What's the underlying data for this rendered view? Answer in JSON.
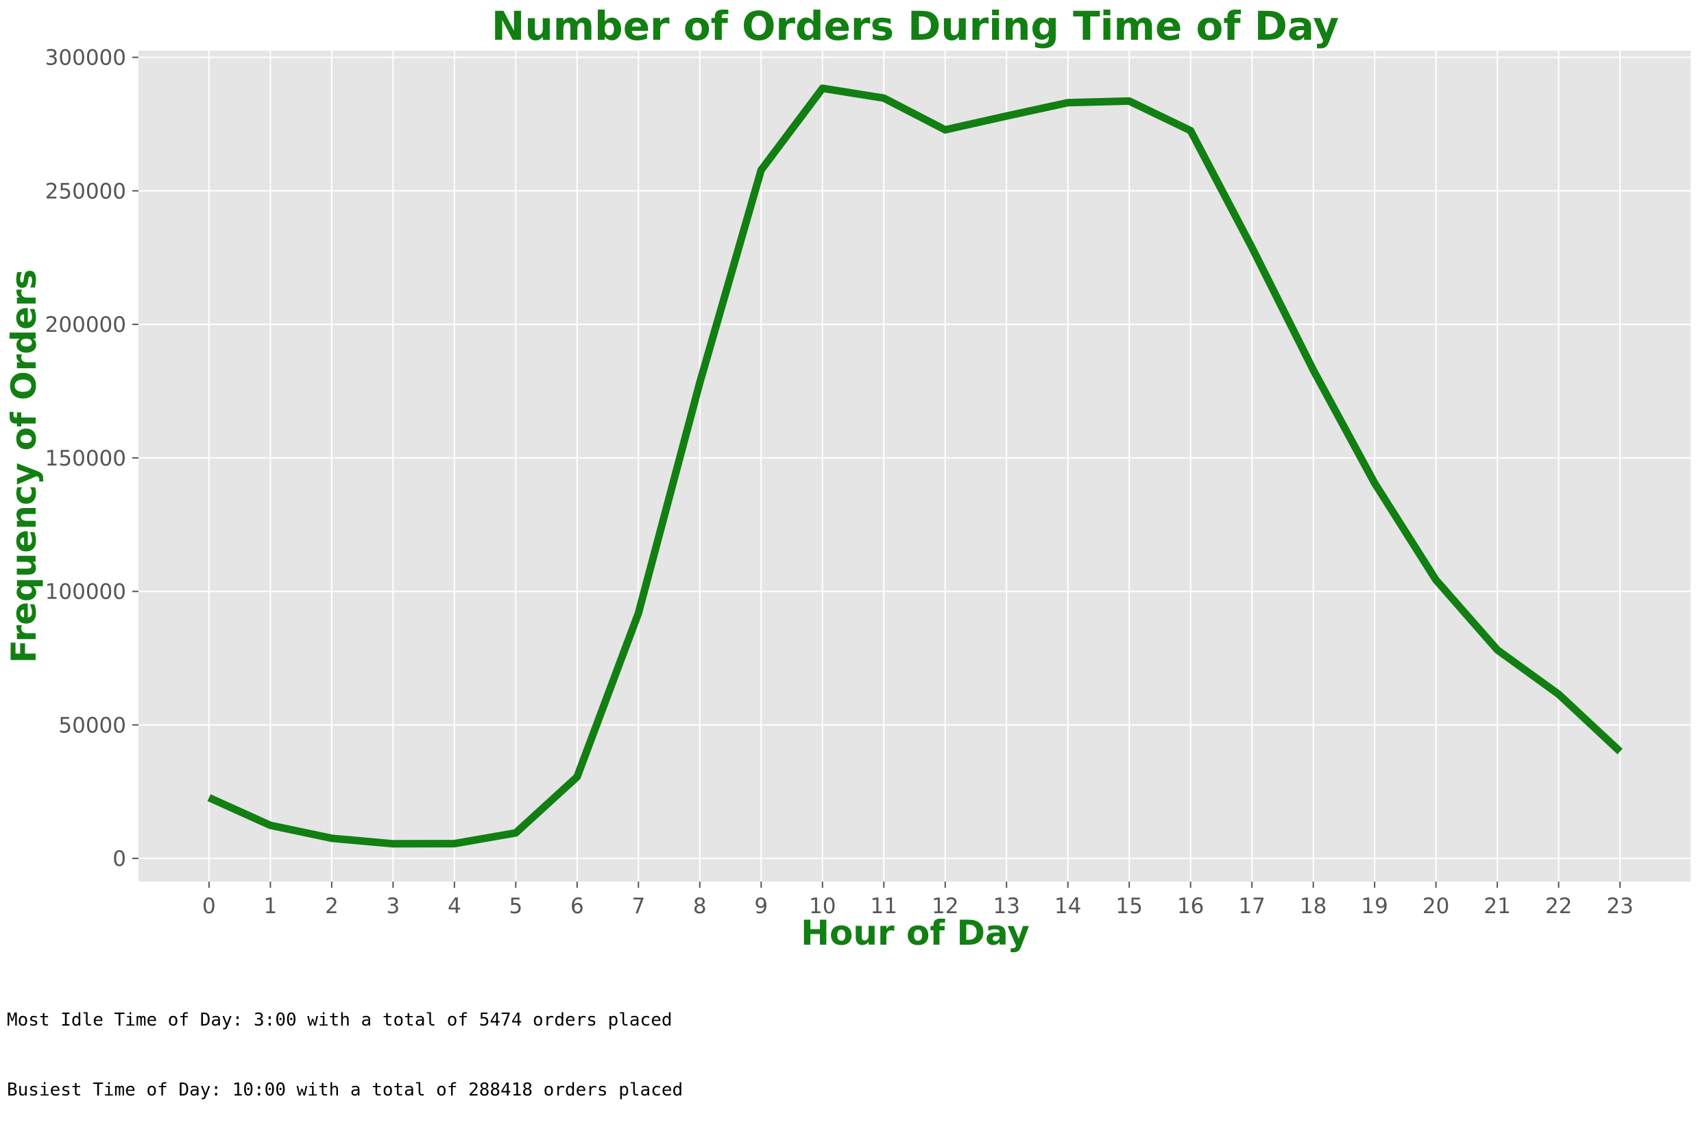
{
  "colors": {
    "accent": "#117F11",
    "plot_background": "#E5E5E5",
    "grid": "#FFFFFF",
    "tick_label": "#555555"
  },
  "chart_data": {
    "type": "line",
    "title": "Number of Orders During Time of Day",
    "xlabel": "Hour of Day",
    "ylabel": "Frequency of Orders",
    "x": [
      0,
      1,
      2,
      3,
      4,
      5,
      6,
      7,
      8,
      9,
      10,
      11,
      12,
      13,
      14,
      15,
      16,
      17,
      18,
      19,
      20,
      21,
      22,
      23
    ],
    "series": [
      {
        "name": "",
        "values": [
          22758,
          12398,
          7539,
          5474,
          5527,
          9569,
          30529,
          91868,
          178201,
          257812,
          288418,
          284728,
          272841,
          277999,
          283042,
          283639,
          272553,
          228795,
          182912,
          140569,
          104292,
          78109,
          61468,
          40043
        ]
      }
    ],
    "xticks": [
      "0",
      "1",
      "2",
      "3",
      "4",
      "5",
      "6",
      "7",
      "8",
      "9",
      "10",
      "11",
      "12",
      "13",
      "14",
      "15",
      "16",
      "17",
      "18",
      "19",
      "20",
      "21",
      "22",
      "23"
    ],
    "yticks": [
      0,
      50000,
      100000,
      150000,
      200000,
      250000,
      300000
    ],
    "ytick_labels": [
      "0",
      "50000",
      "100000",
      "150000",
      "200000",
      "250000",
      "300000"
    ],
    "xlim": [
      -1.15,
      24.15
    ],
    "ylim": [
      -8692,
      302476
    ],
    "grid": true,
    "legend": "none"
  },
  "notes": {
    "idle": "Most Idle Time of Day: 3:00 with a total of 5474 orders placed",
    "busiest": "Busiest Time of Day: 10:00 with a total of 288418 orders placed"
  }
}
